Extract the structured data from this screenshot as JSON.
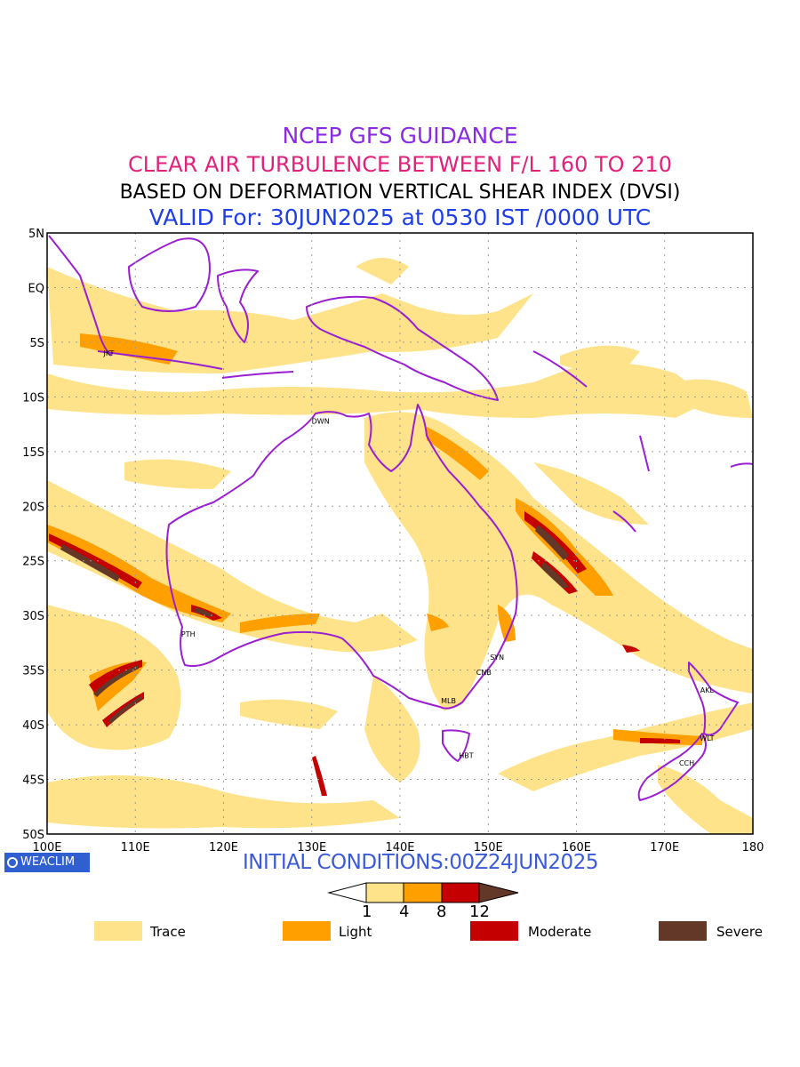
{
  "header": {
    "line1": "NCEP GFS GUIDANCE",
    "line2": "CLEAR AIR TURBULENCE BETWEEN F/L 160 TO 210",
    "line3": "BASED ON DEFORMATION VERTICAL SHEAR INDEX (DVSI)",
    "line4": "VALID For: 30JUN2025 at 0530 IST /0000 UTC"
  },
  "colors": {
    "line1": "#8a2be2",
    "line2": "#e0227a",
    "line3": "#000000",
    "line4": "#1f3fe6",
    "coast": "#9a1fd1",
    "trace": "#ffe38a",
    "light": "#ff9f00",
    "moderate": "#c40000",
    "severe": "#633829",
    "badge": "#2f5fd0",
    "initial": "#3a5ad9"
  },
  "axes": {
    "lat_labels": [
      "5N",
      "EQ",
      "5S",
      "10S",
      "15S",
      "20S",
      "25S",
      "30S",
      "35S",
      "40S",
      "45S",
      "50S"
    ],
    "lon_labels": [
      "100E",
      "110E",
      "120E",
      "130E",
      "140E",
      "150E",
      "160E",
      "170E",
      "180"
    ]
  },
  "cities": [
    {
      "code": "JKT",
      "lon": 107,
      "lat": -6
    },
    {
      "code": "DWN",
      "lon": 131,
      "lat": -12.2
    },
    {
      "code": "PTH",
      "lon": 116,
      "lat": -31.7
    },
    {
      "code": "SYN",
      "lon": 151,
      "lat": -33.8
    },
    {
      "code": "CNB",
      "lon": 149.5,
      "lat": -35.2
    },
    {
      "code": "MLB",
      "lon": 145.5,
      "lat": -37.8
    },
    {
      "code": "HBT",
      "lon": 147.5,
      "lat": -42.8
    },
    {
      "code": "AKL",
      "lon": 174.8,
      "lat": -36.8
    },
    {
      "code": "WLT",
      "lon": 174.8,
      "lat": -41.2
    },
    {
      "code": "CCH",
      "lon": 172.5,
      "lat": -43.5
    }
  ],
  "branding": {
    "badge_icon": "circle-logo-icon",
    "badge_text": "WEACLIM"
  },
  "initial_conditions": "INITIAL CONDITIONS:00Z24JUN2025",
  "colorbar": {
    "ticks": [
      "1",
      "4",
      "8",
      "12"
    ]
  },
  "legend": [
    {
      "label": "Trace",
      "color": "#ffe38a"
    },
    {
      "label": "Light",
      "color": "#ff9f00"
    },
    {
      "label": "Moderate",
      "color": "#c40000"
    },
    {
      "label": "Severe",
      "color": "#633829"
    }
  ]
}
